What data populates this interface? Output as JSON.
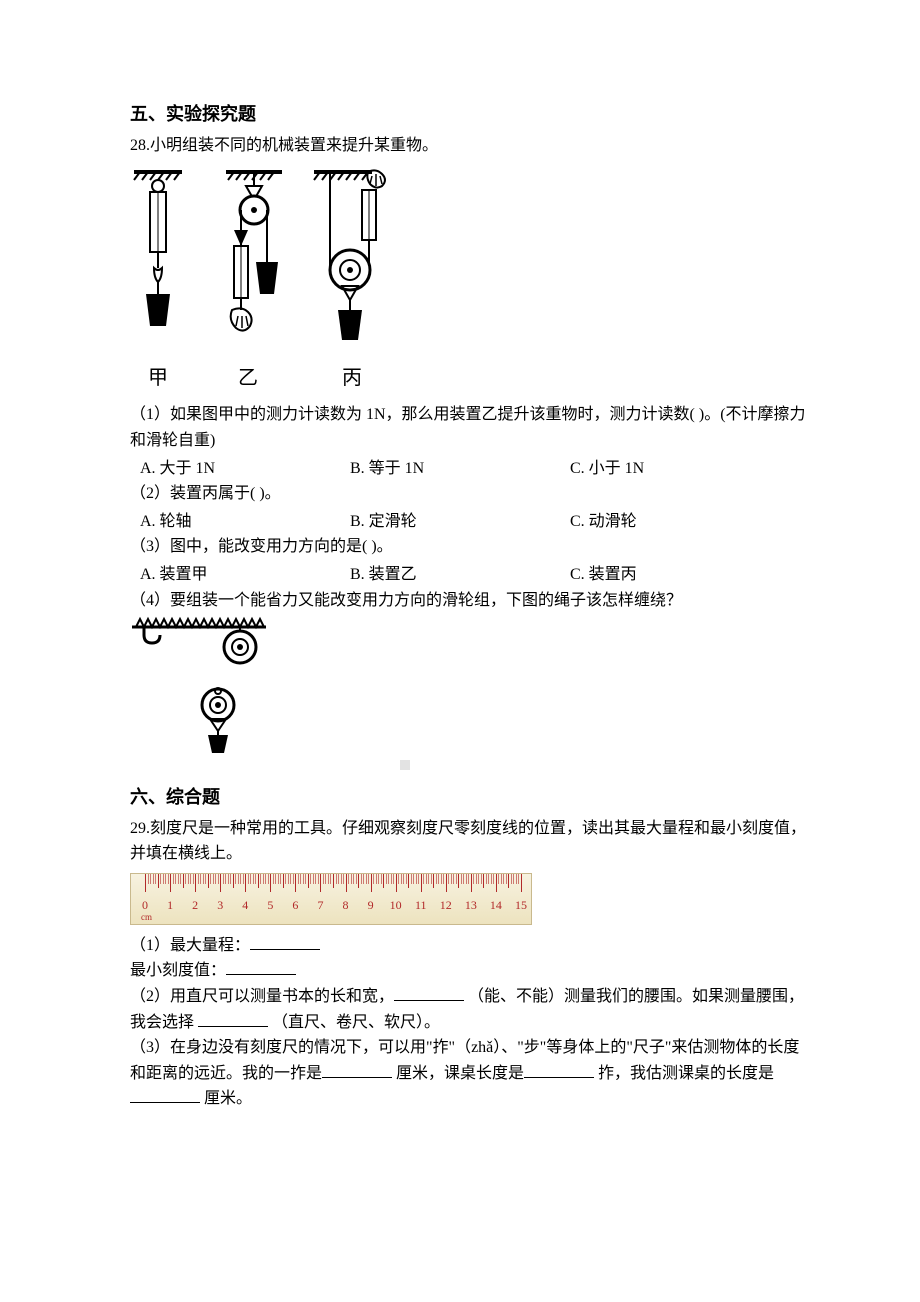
{
  "section5": {
    "title": "五、实验探究题"
  },
  "q28": {
    "stem": "28.小明组装不同的机械装置来提升某重物。",
    "fig_labels": {
      "a": "甲",
      "b": "乙",
      "c": "丙"
    },
    "p1": "（1）如果图甲中的测力计读数为 1N，那么用装置乙提升该重物时，测力计读数(    )。(不计摩擦力和滑轮自重)",
    "p1_opts": {
      "a": "A. 大于 1N",
      "b": "B. 等于 1N",
      "c": "C. 小于 1N"
    },
    "p2": "（2）装置丙属于(    )。",
    "p2_opts": {
      "a": "A. 轮轴",
      "b": "B. 定滑轮",
      "c": "C. 动滑轮"
    },
    "p3": "（3）图中，能改变用力方向的是(    )。",
    "p3_opts": {
      "a": "A. 装置甲",
      "b": "B. 装置乙",
      "c": "C. 装置丙"
    },
    "p4": "（4）要组装一个能省力又能改变用力方向的滑轮组，下图的绳子该怎样缠绕？"
  },
  "section6": {
    "title": "六、综合题"
  },
  "q29": {
    "stem": "29.刻度尺是一种常用的工具。仔细观察刻度尺零刻度线的位置，读出其最大量程和最小刻度值，并填在横线上。",
    "ruler": {
      "max": 15,
      "cm_label": "cm",
      "major_color": "#b22a2a",
      "bg1": "#f7f2e0",
      "bg2": "#ede3bf"
    },
    "p1a": "（1）最大量程：",
    "p1b": "最小刻度值：",
    "p2a": "（2）用直尺可以测量书本的长和宽，",
    "p2b": "（能、不能）测量我们的腰围。如果测量腰围，我会选择 ",
    "p2c": " （直尺、卷尺、软尺）。",
    "p3a": "（3）在身边没有刻度尺的情况下，可以用\"拃\"（zhǎ）、\"步\"等身体上的\"尺子\"来估测物体的长度和距离的远近。我的一拃是",
    "p3b": "厘米，课桌长度是",
    "p3c": " 拃，我估测课桌的长度是 ",
    "p3d": " 厘米。"
  },
  "opt_layout": {
    "col1_w": 210,
    "col2_w": 220,
    "col3_w": 200
  }
}
